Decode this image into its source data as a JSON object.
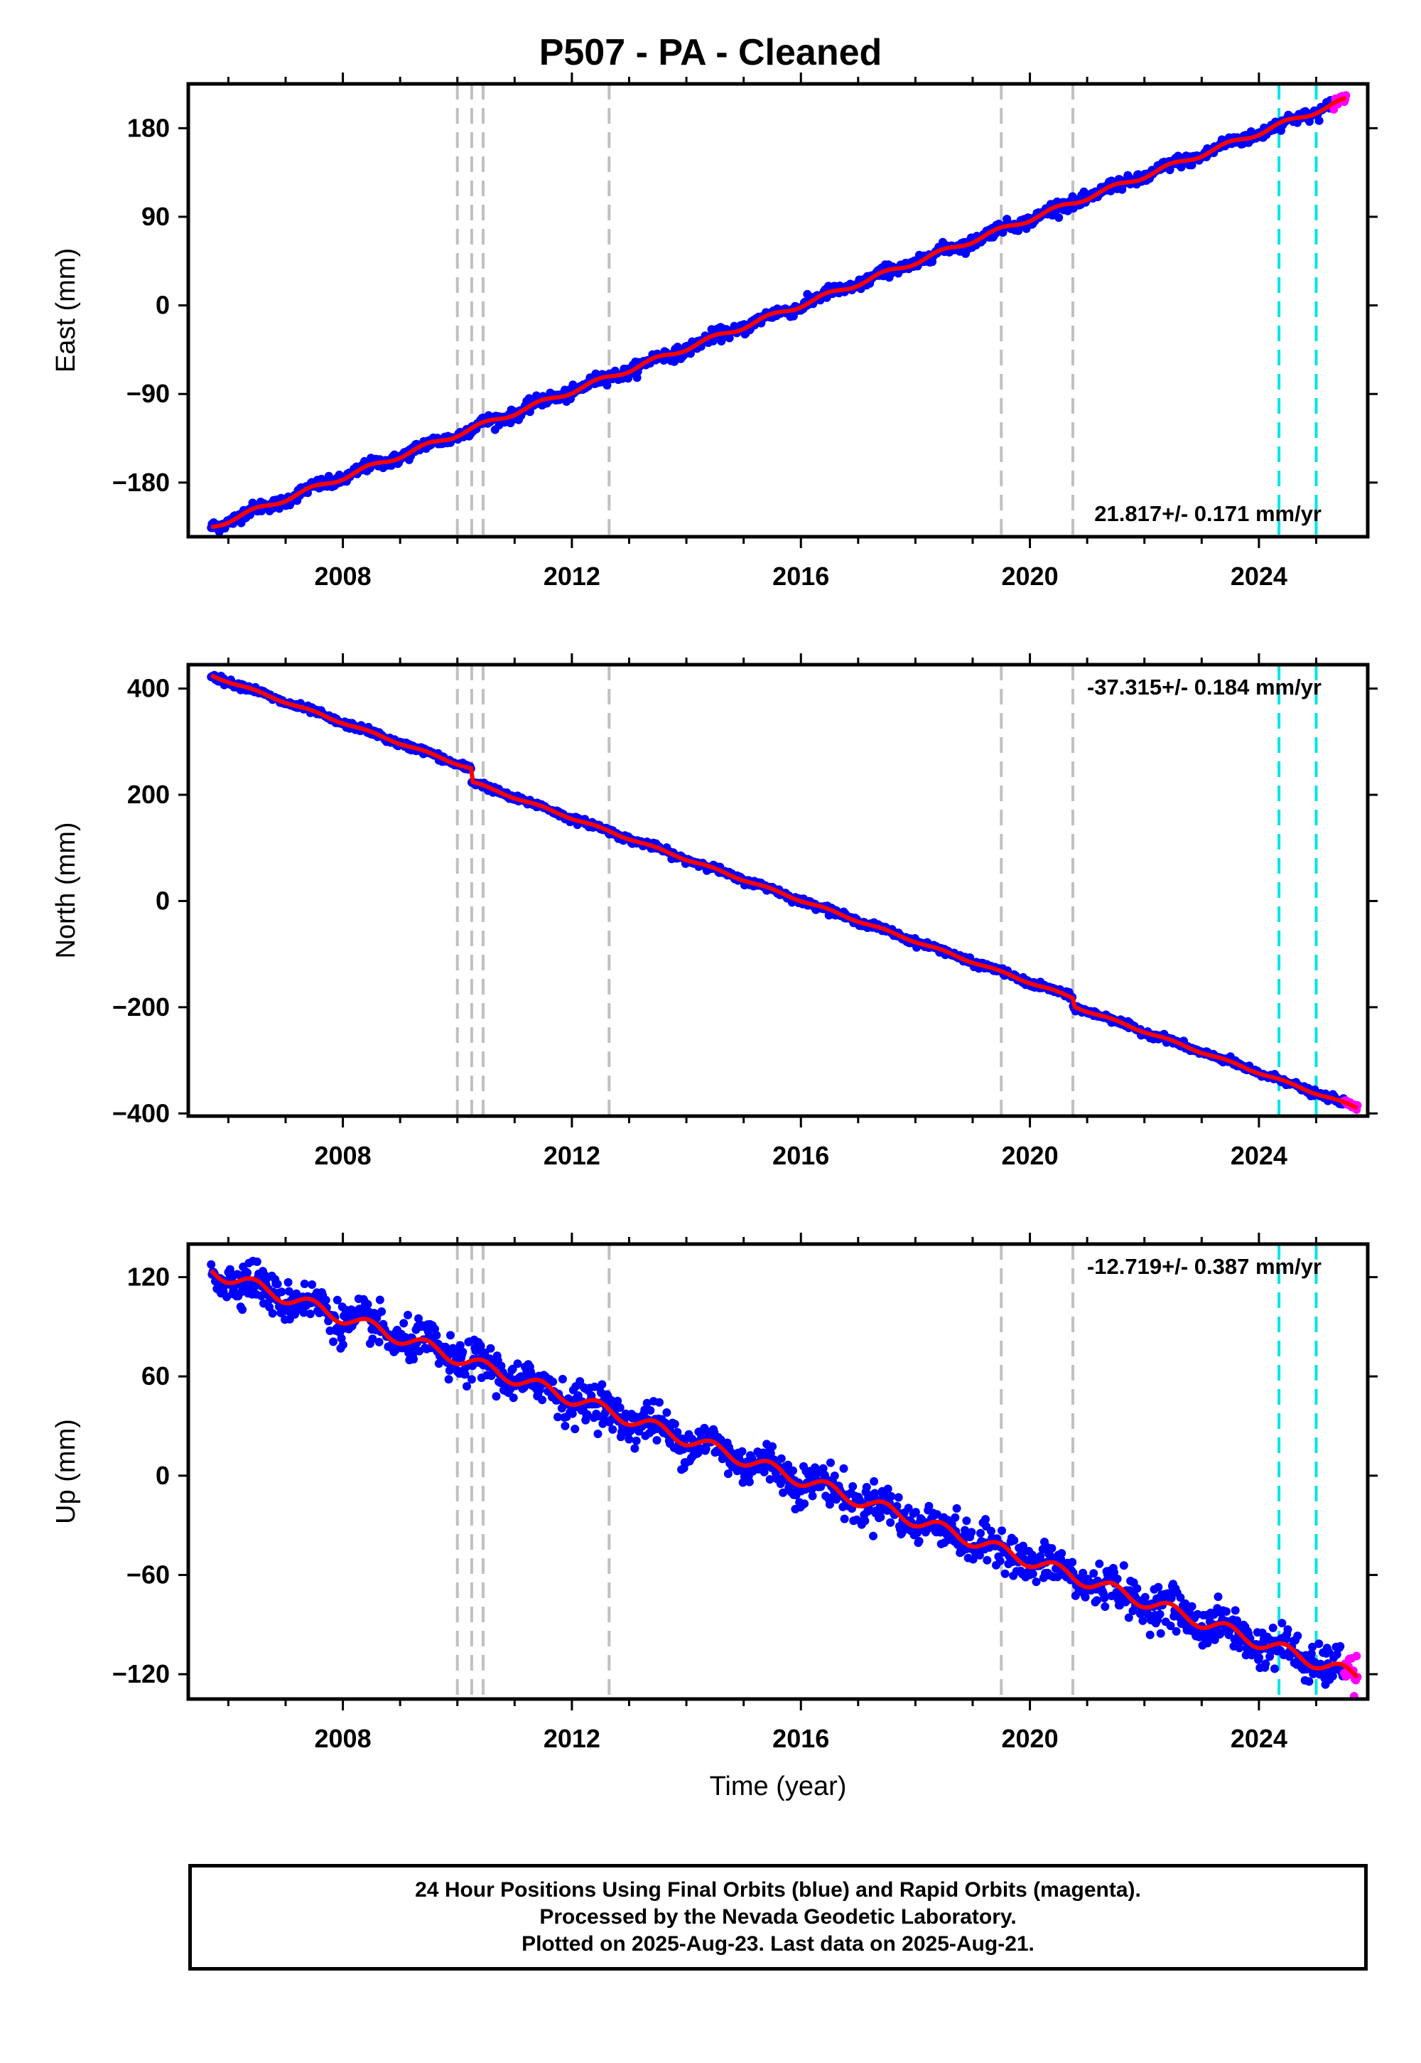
{
  "title": "P507  - PA - Cleaned",
  "footer": {
    "line1": "24 Hour Positions Using Final Orbits (blue) and Rapid Orbits (magenta).",
    "line2": "Processed by the Nevada Geodetic Laboratory.",
    "line3": "Plotted on 2025-Aug-23. Last data on 2025-Aug-21."
  },
  "colors": {
    "final_orbits": "#0000ff",
    "rapid_orbits": "#ff00ff",
    "model_fit": "#ff0000",
    "gray_events": "#c0c0c0",
    "cyan_events": "#00e5e5"
  },
  "chart_data": [
    {
      "type": "scatter",
      "title": "P507  - PA - Cleaned",
      "ylabel": "East (mm)",
      "xlabel": "",
      "xlim": [
        2005.3,
        2025.9
      ],
      "ylim": [
        -235,
        225
      ],
      "yticks": [
        -180,
        -90,
        0,
        90,
        180
      ],
      "xticks": [
        2008,
        2012,
        2016,
        2020,
        2024
      ],
      "start": [
        2005.7,
        -225
      ],
      "end": [
        2025.4,
        206
      ],
      "rate_label": "21.817+/- 0.171 mm/yr",
      "rate_position": "bottom-right",
      "noise": 3,
      "seasonal": 2.5,
      "steps": [],
      "gray_events": [
        2010.0,
        2010.25,
        2010.45,
        2012.65,
        2019.5,
        2020.75
      ],
      "cyan_events": [
        2024.35,
        2025.0
      ],
      "grid": false
    },
    {
      "type": "scatter",
      "ylabel": "North (mm)",
      "xlabel": "",
      "xlim": [
        2005.3,
        2025.9
      ],
      "ylim": [
        -405,
        445
      ],
      "yticks": [
        -400,
        -200,
        0,
        200,
        400
      ],
      "xticks": [
        2008,
        2012,
        2016,
        2020,
        2024
      ],
      "start": [
        2005.7,
        425
      ],
      "end": [
        2025.6,
        -385
      ],
      "rate_label": "-37.315+/- 0.184 mm/yr",
      "rate_position": "top-right",
      "noise": 3,
      "seasonal": 2,
      "steps": [
        [
          2010.25,
          -25
        ],
        [
          2020.75,
          -15
        ]
      ],
      "gray_events": [
        2010.0,
        2010.25,
        2010.45,
        2012.65,
        2019.5,
        2020.75
      ],
      "cyan_events": [
        2024.35,
        2025.0
      ],
      "grid": false
    },
    {
      "type": "scatter",
      "ylabel": "Up (mm)",
      "xlabel": "Time (year)",
      "xlim": [
        2005.3,
        2025.9
      ],
      "ylim": [
        -135,
        140
      ],
      "yticks": [
        -120,
        -60,
        0,
        60,
        120
      ],
      "xticks": [
        2008,
        2012,
        2016,
        2020,
        2024
      ],
      "start": [
        2005.7,
        124
      ],
      "end": [
        2025.6,
        -120
      ],
      "rate_label": "-12.719+/- 0.387 mm/yr",
      "rate_position": "top-right",
      "noise": 6,
      "seasonal": 4,
      "steps": [],
      "gray_events": [
        2010.0,
        2010.25,
        2010.45,
        2012.65,
        2019.5,
        2020.75
      ],
      "cyan_events": [
        2024.35,
        2025.0
      ],
      "grid": false
    }
  ]
}
